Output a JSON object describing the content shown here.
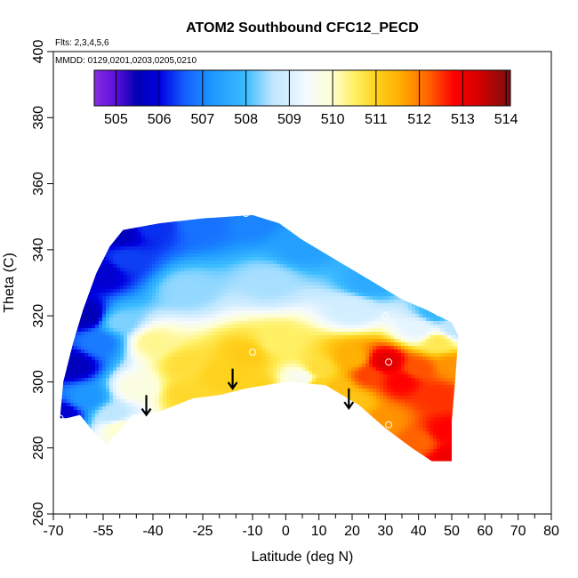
{
  "chart_data": {
    "type": "heatmap",
    "title": "ATOM2 Southbound CFC12_PECD",
    "subtitle_flights": "Flts: 2,3,4,5,6",
    "subtitle_dates": "MMDD: 0129,0201,0203,0205,0210",
    "xlabel": "Latitude (deg N)",
    "ylabel": "Theta (C)",
    "xlim": [
      -70,
      80
    ],
    "ylim": [
      260,
      400
    ],
    "x_ticks": [
      "-70",
      "-55",
      "-40",
      "-25",
      "-10",
      "0",
      "10",
      "20",
      "30",
      "40",
      "50",
      "60",
      "70",
      "80"
    ],
    "x_tick_values": [
      -70,
      -55,
      -40,
      -25,
      -10,
      0,
      10,
      20,
      30,
      40,
      50,
      60,
      70,
      80
    ],
    "x_minor_ticks": [
      -65,
      -60,
      -50,
      -45,
      -35,
      -30,
      -20,
      -15,
      -5,
      5,
      15,
      25,
      35,
      45,
      55,
      65,
      75
    ],
    "y_ticks": [
      "260",
      "280",
      "300",
      "320",
      "340",
      "360",
      "380",
      "400"
    ],
    "y_tick_values": [
      260,
      280,
      300,
      320,
      340,
      360,
      380,
      400
    ],
    "colorbar": {
      "min": 504.5,
      "max": 514.1,
      "labels": [
        "505",
        "506",
        "507",
        "508",
        "509",
        "510",
        "511",
        "512",
        "513",
        "514"
      ],
      "label_values": [
        505,
        506,
        507,
        508,
        509,
        510,
        511,
        512,
        513,
        514
      ],
      "stops": [
        {
          "v": 504.5,
          "c": "#8a2be2"
        },
        {
          "v": 505.0,
          "c": "#5a10d8"
        },
        {
          "v": 505.5,
          "c": "#0000b4"
        },
        {
          "v": 506.0,
          "c": "#0000e0"
        },
        {
          "v": 506.6,
          "c": "#1460ff"
        },
        {
          "v": 507.2,
          "c": "#1e96ff"
        },
        {
          "v": 508.0,
          "c": "#3cbcff"
        },
        {
          "v": 508.6,
          "c": "#bee6ff"
        },
        {
          "v": 509.4,
          "c": "#f4faff"
        },
        {
          "v": 510.0,
          "c": "#ffffd2"
        },
        {
          "v": 510.5,
          "c": "#fff064"
        },
        {
          "v": 511.0,
          "c": "#ffd21e"
        },
        {
          "v": 511.6,
          "c": "#ffaa00"
        },
        {
          "v": 512.2,
          "c": "#ff6400"
        },
        {
          "v": 512.8,
          "c": "#ff0000"
        },
        {
          "v": 513.4,
          "c": "#d20000"
        },
        {
          "v": 514.1,
          "c": "#7a1010"
        }
      ]
    },
    "field": {
      "boundary": [
        [
          -68,
          289
        ],
        [
          -67,
          300
        ],
        [
          -64,
          312
        ],
        [
          -61,
          322
        ],
        [
          -57,
          333
        ],
        [
          -53,
          341
        ],
        [
          -49,
          346
        ],
        [
          -38,
          348
        ],
        [
          -25,
          349.5
        ],
        [
          -10,
          350.5
        ],
        [
          -2,
          348
        ],
        [
          5,
          343
        ],
        [
          15,
          337
        ],
        [
          25,
          331
        ],
        [
          35,
          325
        ],
        [
          42,
          322
        ],
        [
          50,
          318
        ],
        [
          52,
          314
        ],
        [
          51,
          300
        ],
        [
          50,
          288
        ],
        [
          50,
          276
        ],
        [
          44,
          276
        ],
        [
          38,
          280
        ],
        [
          30,
          286
        ],
        [
          22,
          293
        ],
        [
          12,
          299
        ],
        [
          0,
          300
        ],
        [
          -12,
          298
        ],
        [
          -20,
          296
        ],
        [
          -28,
          295
        ],
        [
          -38,
          291
        ],
        [
          -46,
          290
        ],
        [
          -54,
          281
        ],
        [
          -58,
          285
        ],
        [
          -62,
          290
        ],
        [
          -66,
          289
        ]
      ],
      "anchors": [
        {
          "lat": -67,
          "theta": 290,
          "v": 505.8
        },
        {
          "lat": -64,
          "theta": 305,
          "v": 505.6
        },
        {
          "lat": -60,
          "theta": 320,
          "v": 505.5
        },
        {
          "lat": -55,
          "theta": 333,
          "v": 505.8
        },
        {
          "lat": -50,
          "theta": 345,
          "v": 505.6
        },
        {
          "lat": -48,
          "theta": 337,
          "v": 506.4
        },
        {
          "lat": -40,
          "theta": 347,
          "v": 506.3
        },
        {
          "lat": -25,
          "theta": 348,
          "v": 506.8
        },
        {
          "lat": -10,
          "theta": 349,
          "v": 507.0
        },
        {
          "lat": 5,
          "theta": 341,
          "v": 507.4
        },
        {
          "lat": 25,
          "theta": 330,
          "v": 507.6
        },
        {
          "lat": 45,
          "theta": 321,
          "v": 507.9
        },
        {
          "lat": 51,
          "theta": 316,
          "v": 508.6
        },
        {
          "lat": -60,
          "theta": 295,
          "v": 507.2
        },
        {
          "lat": -56,
          "theta": 312,
          "v": 506.9
        },
        {
          "lat": -52,
          "theta": 290,
          "v": 508.6
        },
        {
          "lat": -50,
          "theta": 318,
          "v": 508.3
        },
        {
          "lat": -30,
          "theta": 328,
          "v": 508.4
        },
        {
          "lat": -5,
          "theta": 330,
          "v": 508.5
        },
        {
          "lat": 20,
          "theta": 322,
          "v": 508.9
        },
        {
          "lat": 40,
          "theta": 316,
          "v": 509.2
        },
        {
          "lat": -45,
          "theta": 298,
          "v": 509.8
        },
        {
          "lat": -40,
          "theta": 312,
          "v": 510.3
        },
        {
          "lat": -30,
          "theta": 305,
          "v": 510.8
        },
        {
          "lat": -20,
          "theta": 302,
          "v": 511.0
        },
        {
          "lat": -12,
          "theta": 308,
          "v": 511.1
        },
        {
          "lat": -2,
          "theta": 312,
          "v": 510.5
        },
        {
          "lat": 5,
          "theta": 301,
          "v": 509.6
        },
        {
          "lat": 10,
          "theta": 304,
          "v": 510.8
        },
        {
          "lat": 15,
          "theta": 298,
          "v": 511.3
        },
        {
          "lat": 20,
          "theta": 307,
          "v": 511.5
        },
        {
          "lat": 25,
          "theta": 302,
          "v": 512.4
        },
        {
          "lat": 30,
          "theta": 306,
          "v": 513.2
        },
        {
          "lat": 35,
          "theta": 300,
          "v": 512.8
        },
        {
          "lat": 40,
          "theta": 304,
          "v": 512.3
        },
        {
          "lat": 45,
          "theta": 296,
          "v": 512.5
        },
        {
          "lat": 48,
          "theta": 285,
          "v": 512.8
        },
        {
          "lat": 50,
          "theta": 277,
          "v": 513.0
        },
        {
          "lat": 40,
          "theta": 282,
          "v": 512.2
        },
        {
          "lat": 30,
          "theta": 288,
          "v": 511.8
        },
        {
          "lat": 20,
          "theta": 294,
          "v": 511.2
        },
        {
          "lat": 10,
          "theta": 299,
          "v": 511.0
        },
        {
          "lat": -10,
          "theta": 299,
          "v": 511.0
        },
        {
          "lat": -30,
          "theta": 296,
          "v": 510.9
        },
        {
          "lat": -50,
          "theta": 286,
          "v": 510.0
        },
        {
          "lat": 46,
          "theta": 312,
          "v": 510.6
        },
        {
          "lat": 50,
          "theta": 305,
          "v": 511.8
        }
      ]
    },
    "flight_markers": [
      {
        "lat": -54,
        "theta": 345
      },
      {
        "lat": -12,
        "theta": 351
      },
      {
        "lat": 30,
        "theta": 320
      },
      {
        "lat": 46,
        "theta": 321
      },
      {
        "lat": -10,
        "theta": 309
      },
      {
        "lat": 31,
        "theta": 306
      },
      {
        "lat": 31,
        "theta": 287
      },
      {
        "lat": -68,
        "theta": 289
      }
    ],
    "arrows": [
      {
        "lat": -42,
        "theta_top": 296,
        "theta_bottom": 290
      },
      {
        "lat": -16,
        "theta_top": 304,
        "theta_bottom": 298
      },
      {
        "lat": 19,
        "theta_top": 298,
        "theta_bottom": 292
      }
    ]
  }
}
